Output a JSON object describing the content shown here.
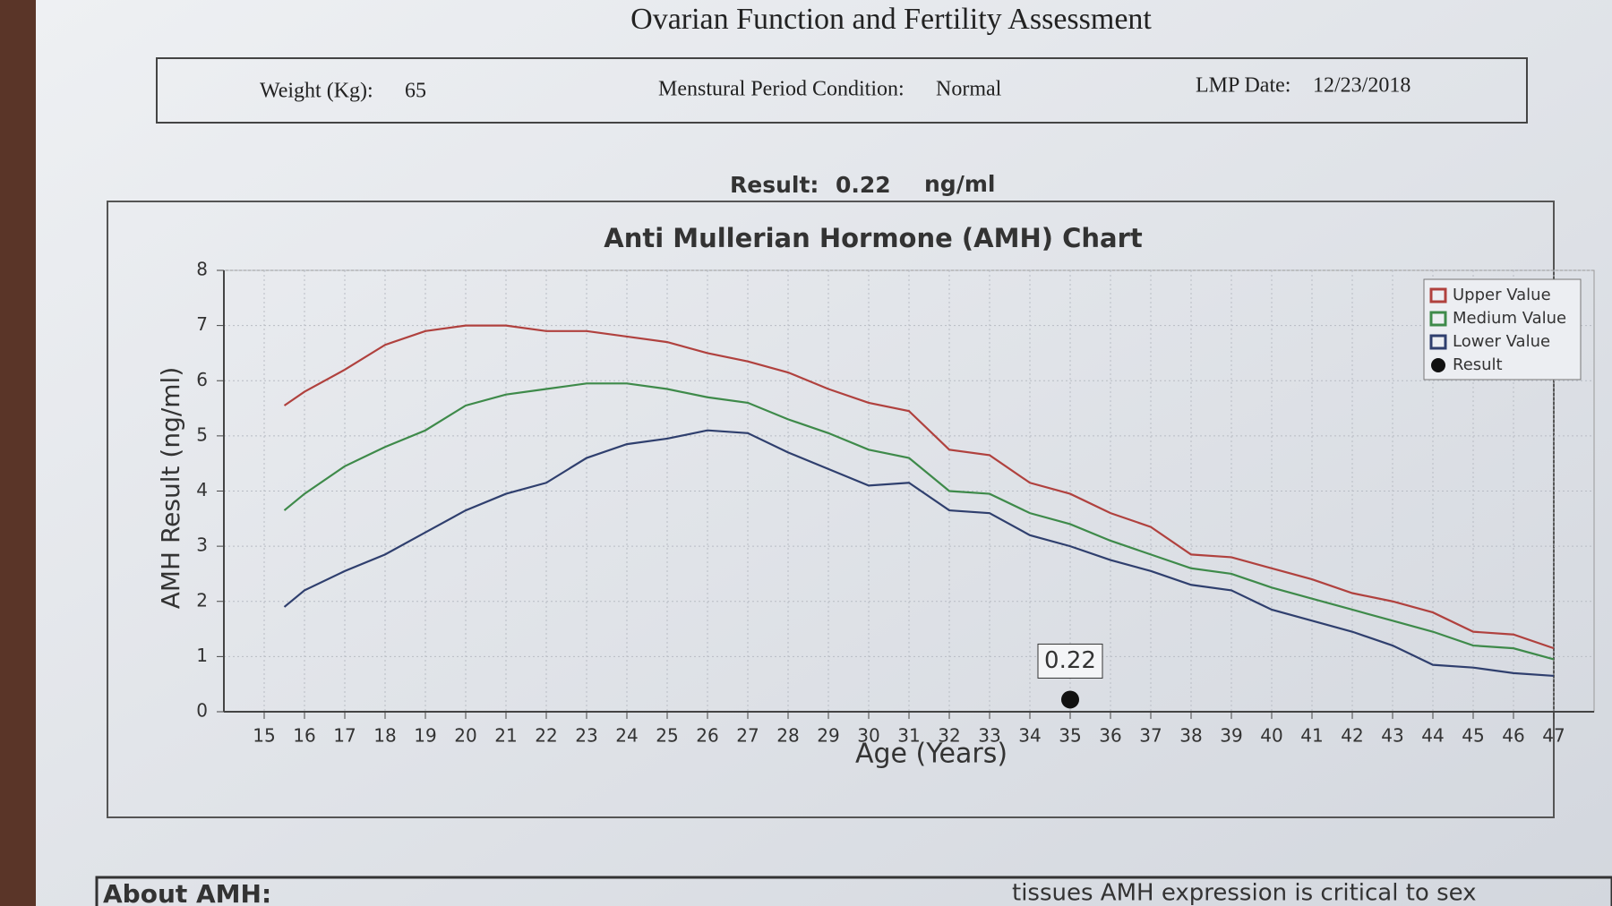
{
  "header": {
    "title": "Ovarian Function and Fertility Assessment",
    "fields": [
      {
        "label": "Weight (Kg):",
        "value": "65"
      },
      {
        "label": "Menstural Period Condition:",
        "value": "Normal"
      },
      {
        "label": "LMP Date:",
        "value": "12/23/2018"
      }
    ]
  },
  "result": {
    "label": "Result:",
    "value": "0.22",
    "unit": "ng/ml"
  },
  "chart_data": {
    "type": "line",
    "title": "Anti Mullerian Hormone (AMH) Chart",
    "x_label": "Age (Years)",
    "y_label": "AMH Result (ng/ml)",
    "x": [
      15.5,
      16,
      17,
      18,
      19,
      20,
      21,
      22,
      23,
      24,
      25,
      26,
      27,
      28,
      29,
      30,
      31,
      32,
      33,
      34,
      35,
      36,
      37,
      38,
      39,
      40,
      41,
      42,
      43,
      44,
      45,
      46,
      47
    ],
    "series": [
      {
        "name": "Upper Value",
        "color": "#b0413e",
        "values": [
          5.55,
          5.8,
          6.2,
          6.65,
          6.9,
          7.0,
          7.0,
          6.9,
          6.9,
          6.8,
          6.7,
          6.5,
          6.35,
          6.15,
          5.85,
          5.6,
          5.45,
          4.75,
          4.65,
          4.15,
          3.95,
          3.6,
          3.35,
          2.85,
          2.8,
          2.6,
          2.4,
          2.15,
          2.0,
          1.8,
          1.45,
          1.4,
          1.15
        ]
      },
      {
        "name": "Medium Value",
        "color": "#3e8a4a",
        "values": [
          3.65,
          3.95,
          4.45,
          4.8,
          5.1,
          5.55,
          5.75,
          5.85,
          5.95,
          5.95,
          5.85,
          5.7,
          5.6,
          5.3,
          5.05,
          4.75,
          4.6,
          4.0,
          3.95,
          3.6,
          3.4,
          3.1,
          2.85,
          2.6,
          2.5,
          2.25,
          2.05,
          1.85,
          1.65,
          1.45,
          1.2,
          1.15,
          0.95
        ]
      },
      {
        "name": "Lower Value",
        "color": "#2f3f6e",
        "values": [
          1.9,
          2.2,
          2.55,
          2.85,
          3.25,
          3.65,
          3.95,
          4.15,
          4.6,
          4.85,
          4.95,
          5.1,
          5.05,
          4.7,
          4.4,
          4.1,
          4.15,
          3.65,
          3.6,
          3.2,
          3.0,
          2.75,
          2.55,
          2.3,
          2.2,
          1.85,
          1.65,
          1.45,
          1.2,
          0.85,
          0.8,
          0.7,
          0.65
        ]
      },
      {
        "name": "Result",
        "color": "#111111",
        "type": "scatter",
        "x": [
          35
        ],
        "values": [
          0.22
        ]
      }
    ],
    "xlim": [
      14,
      48
    ],
    "ylim": [
      0,
      8
    ],
    "xticks": [
      15,
      16,
      17,
      18,
      19,
      20,
      21,
      22,
      23,
      24,
      25,
      26,
      27,
      28,
      29,
      30,
      31,
      32,
      33,
      34,
      35,
      36,
      37,
      38,
      39,
      40,
      41,
      42,
      43,
      44,
      45,
      46,
      47
    ],
    "yticks": [
      0,
      1,
      2,
      3,
      4,
      5,
      6,
      7,
      8
    ],
    "grid": true,
    "legend": "top-right"
  },
  "footer": {
    "heading": "About AMH:",
    "text": "tissues AMH expression is critical to sex"
  }
}
